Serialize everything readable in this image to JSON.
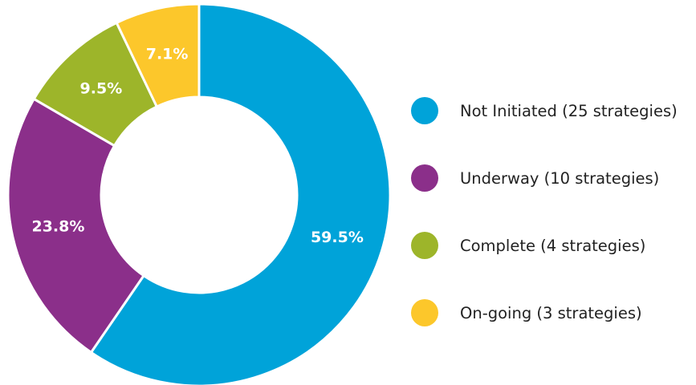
{
  "chart_data": {
    "type": "pie",
    "title": "",
    "donut": true,
    "legend_position": "right",
    "slices": [
      {
        "label": "Not Initiated (25 strategies)",
        "value": 59.5,
        "count": 25,
        "display": "59.5%",
        "color": "#00A3D9"
      },
      {
        "label": "Underway (10 strategies)",
        "value": 23.8,
        "count": 10,
        "display": "23.8%",
        "color": "#8B2F8A"
      },
      {
        "label": "Complete (4 strategies)",
        "value": 9.5,
        "count": 4,
        "display": "9.5%",
        "color": "#9DB52A"
      },
      {
        "label": "On-going (3 strategies)",
        "value": 7.1,
        "count": 3,
        "display": "7.1%",
        "color": "#FCC72B"
      }
    ]
  }
}
